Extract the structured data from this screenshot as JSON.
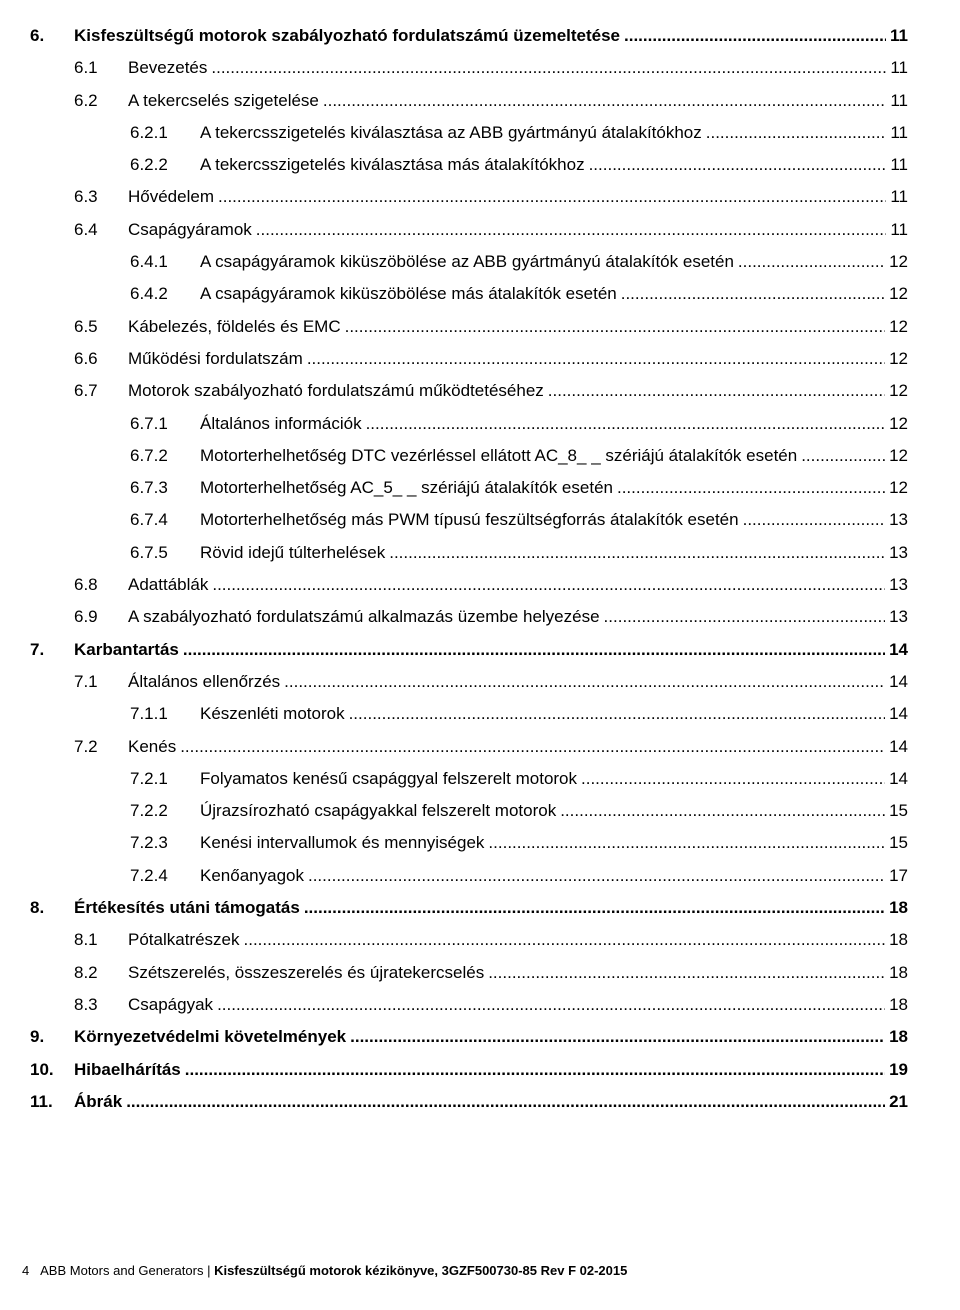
{
  "toc": [
    {
      "level": 0,
      "bold": true,
      "num": "6.",
      "title": "Kisfeszültségű motorok szabályozható fordulatszámú üzemeltetése",
      "page": "11",
      "dot": "d0"
    },
    {
      "level": 1,
      "num": "6.1",
      "title": "Bevezetés",
      "page": "11",
      "dot": "d1"
    },
    {
      "level": 1,
      "num": "6.2",
      "title": "A tekercselés szigetelése",
      "page": "11",
      "dot": "d1"
    },
    {
      "level": 2,
      "num": "6.2.1",
      "title": "A tekercsszigetelés kiválasztása az ABB gyártmányú átalakítókhoz",
      "page": "11",
      "dot": "d1"
    },
    {
      "level": 2,
      "num": "6.2.2",
      "title": "A tekercsszigetelés kiválasztása más átalakítókhoz",
      "page": "11",
      "dot": "d1"
    },
    {
      "level": 1,
      "num": "6.3",
      "title": "Hővédelem",
      "page": "11",
      "dot": "d1"
    },
    {
      "level": 1,
      "num": "6.4",
      "title": "Csapágyáramok",
      "page": "11",
      "dot": "d1"
    },
    {
      "level": 2,
      "num": "6.4.1",
      "title": "A csapágyáramok kiküszöbölése az ABB gyártmányú átalakítók esetén",
      "page": "12",
      "dot": "d1"
    },
    {
      "level": 2,
      "num": "6.4.2",
      "title": "A csapágyáramok kiküszöbölése más átalakítók esetén",
      "page": "12",
      "dot": "d1"
    },
    {
      "level": 1,
      "num": "6.5",
      "title": "Kábelezés, földelés és EMC",
      "page": "12",
      "dot": "d1"
    },
    {
      "level": 1,
      "num": "6.6",
      "title": "Működési fordulatszám",
      "page": "12",
      "dot": "d1"
    },
    {
      "level": 1,
      "num": "6.7",
      "title": "Motorok szabályozható fordulatszámú működtetéséhez",
      "page": "12",
      "dot": "d1"
    },
    {
      "level": 2,
      "num": "6.7.1",
      "title": "Általános információk",
      "page": "12",
      "dot": "d1"
    },
    {
      "level": 2,
      "num": "6.7.2",
      "title": "Motorterhelhetőség DTC vezérléssel ellátott AC_8_ _ szériájú átalakítók esetén",
      "page": "12",
      "dot": "d1"
    },
    {
      "level": 2,
      "num": "6.7.3",
      "title": "Motorterhelhetőség AC_5_ _ szériájú átalakítók esetén",
      "page": "12",
      "dot": "d1"
    },
    {
      "level": 2,
      "num": "6.7.4",
      "title": "Motorterhelhetőség más PWM típusú feszültségforrás átalakítók esetén",
      "page": "13",
      "dot": "d1"
    },
    {
      "level": 2,
      "num": "6.7.5",
      "title": "Rövid idejű túlterhelések",
      "page": "13",
      "dot": "d1"
    },
    {
      "level": 1,
      "num": "6.8",
      "title": "Adattáblák",
      "page": "13",
      "dot": "d1"
    },
    {
      "level": 1,
      "num": "6.9",
      "title": "A szabályozható fordulatszámú alkalmazás üzembe helyezése",
      "page": "13",
      "dot": "d1"
    },
    {
      "level": 0,
      "bold": true,
      "num": "7.",
      "title": "Karbantartás",
      "page": "14",
      "dot": "d0"
    },
    {
      "level": 1,
      "num": "7.1",
      "title": "Általános ellenőrzés",
      "page": "14",
      "dot": "d1"
    },
    {
      "level": 2,
      "num": "7.1.1",
      "title": "Készenléti motorok",
      "page": "14",
      "dot": "d1"
    },
    {
      "level": 1,
      "num": "7.2",
      "title": "Kenés",
      "page": "14",
      "dot": "d1"
    },
    {
      "level": 2,
      "num": "7.2.1",
      "title": "Folyamatos kenésű csapággyal felszerelt motorok",
      "page": "14",
      "dot": "d1"
    },
    {
      "level": 2,
      "num": "7.2.2",
      "title": "Újrazsírozható csapágyakkal felszerelt motorok",
      "page": "15",
      "dot": "d1"
    },
    {
      "level": 2,
      "num": "7.2.3",
      "title": "Kenési intervallumok és mennyiségek",
      "page": "15",
      "dot": "d1"
    },
    {
      "level": 2,
      "num": "7.2.4",
      "title": "Kenőanyagok",
      "page": "17",
      "dot": "d1"
    },
    {
      "level": 0,
      "bold": true,
      "num": "8.",
      "title": "Értékesítés utáni támogatás",
      "page": "18",
      "dot": "d0"
    },
    {
      "level": 1,
      "num": "8.1",
      "title": "Pótalkatrészek",
      "page": "18",
      "dot": "d1"
    },
    {
      "level": 1,
      "num": "8.2",
      "title": "Szétszerelés, összeszerelés és újratekercselés",
      "page": "18",
      "dot": "d1"
    },
    {
      "level": 1,
      "num": "8.3",
      "title": "Csapágyak",
      "page": "18",
      "dot": "d1"
    },
    {
      "level": 0,
      "bold": true,
      "num": "9.",
      "title": "Környezetvédelmi követelmények",
      "page": "18",
      "dot": "d0"
    },
    {
      "level": 0,
      "bold": true,
      "num": "10.",
      "title": "Hibaelhárítás",
      "page": "19",
      "dot": "d0"
    },
    {
      "level": 0,
      "bold": true,
      "num": "11.",
      "title": "Ábrák",
      "page": "21",
      "dot": "d0"
    }
  ],
  "footer": {
    "page_no": "4",
    "left": "ABB Motors and Generators",
    "sep": " | ",
    "right": "Kisfeszültségű motorok kézikönyve, 3GZF500730-85 Rev F 02-2015"
  }
}
